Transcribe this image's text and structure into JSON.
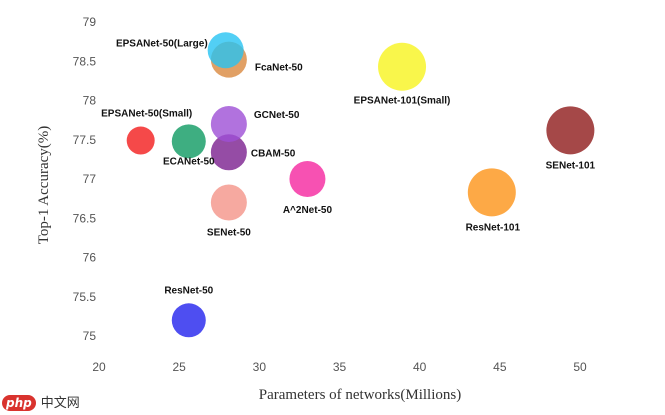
{
  "chart_data": {
    "type": "scatter",
    "title": "",
    "xlabel": "Parameters of networks(Millions)",
    "ylabel": "Top-1 Accuracy(%)",
    "xlim": [
      20,
      50
    ],
    "ylim": [
      75,
      79
    ],
    "xticks": [
      "20",
      "25",
      "30",
      "35",
      "40",
      "45",
      "50"
    ],
    "yticks": [
      "75",
      "75.5",
      "76",
      "76.5",
      "77",
      "77.5",
      "78",
      "78.5",
      "79"
    ],
    "grid": false,
    "points": [
      {
        "name": "ResNet-50",
        "x": 25.6,
        "y": 75.2,
        "color": "#2222ee"
      },
      {
        "name": "SENet-50",
        "x": 28.1,
        "y": 76.7,
        "color": "#f49488"
      },
      {
        "name": "A^2Net-50",
        "x": 33.0,
        "y": 77.0,
        "color": "#f5259f"
      },
      {
        "name": "CBAM-50",
        "x": 28.1,
        "y": 77.34,
        "color": "#7b1f8f"
      },
      {
        "name": "ECANet-50",
        "x": 25.6,
        "y": 77.48,
        "color": "#0e9a62"
      },
      {
        "name": "EPSANet-50(Small)",
        "x": 22.6,
        "y": 77.49,
        "color": "#f21b1b"
      },
      {
        "name": "GCNet-50",
        "x": 28.1,
        "y": 77.7,
        "color": "#9e4fd6"
      },
      {
        "name": "FcaNet-50",
        "x": 28.1,
        "y": 78.52,
        "color": "#d9883f"
      },
      {
        "name": "EPSANet-50(Large)",
        "x": 27.9,
        "y": 78.64,
        "color": "#27c3f2"
      },
      {
        "name": "EPSANet-101(Small)",
        "x": 38.9,
        "y": 78.43,
        "color": "#f7f41e"
      },
      {
        "name": "ResNet-101",
        "x": 44.5,
        "y": 76.83,
        "color": "#fd9418"
      },
      {
        "name": "SENet-101",
        "x": 49.4,
        "y": 77.62,
        "color": "#8e1a1a"
      }
    ]
  },
  "watermark": {
    "logo": "php",
    "text": "中文网"
  }
}
